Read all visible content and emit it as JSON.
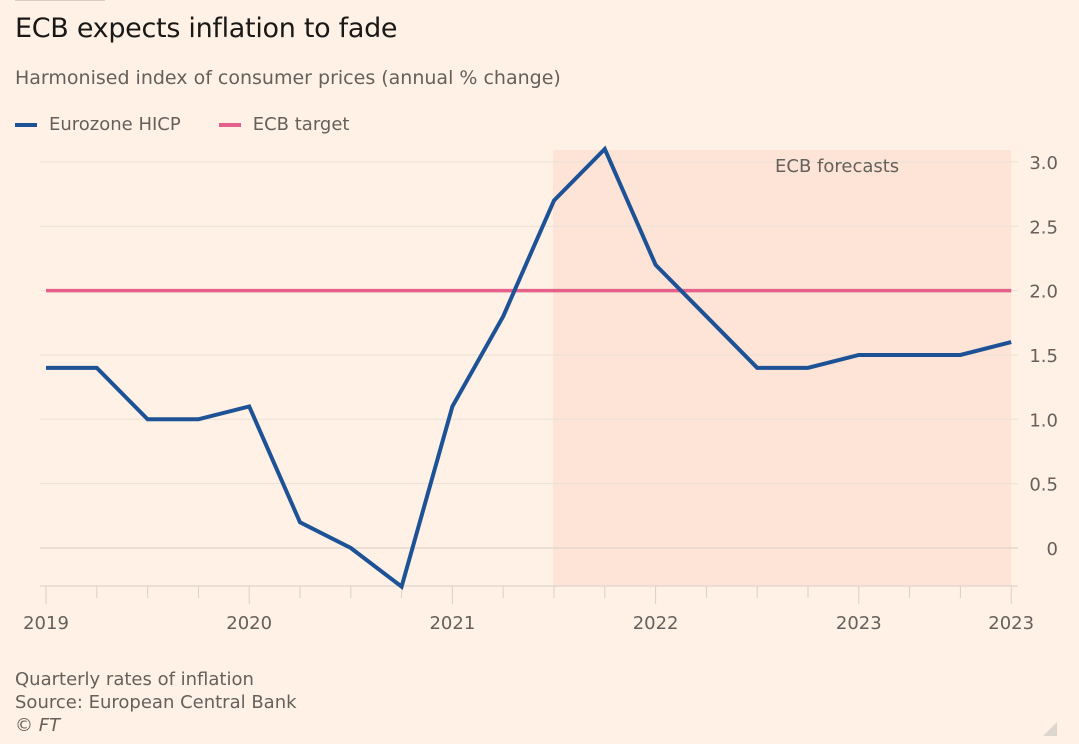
{
  "title": "ECB expects inflation to fade",
  "subtitle": "Harmonised index of consumer prices (annual % change)",
  "legend": [
    {
      "label": "Eurozone HICP",
      "color": "#1d5296"
    },
    {
      "label": "ECB target",
      "color": "#e5608a"
    }
  ],
  "notes": {
    "line1": "Quarterly rates of inflation",
    "line2": "Source: European Central Bank",
    "copyright": "© FT"
  },
  "chart_data": {
    "type": "line",
    "title": "ECB expects inflation to fade",
    "subtitle": "Harmonised index of consumer prices (annual % change)",
    "xlabel": "",
    "ylabel": "",
    "x": [
      "2019 Q1",
      "2019 Q2",
      "2019 Q3",
      "2019 Q4",
      "2020 Q1",
      "2020 Q2",
      "2020 Q3",
      "2020 Q4",
      "2021 Q1",
      "2021 Q2",
      "2021 Q3",
      "2021 Q4",
      "2022 Q1",
      "2022 Q2",
      "2022 Q3",
      "2022 Q4",
      "2023 Q1",
      "2023 Q2",
      "2023 Q3",
      "2023 Q4"
    ],
    "x_tick_labels": [
      {
        "index": 0,
        "label": "2019"
      },
      {
        "index": 4,
        "label": "2020"
      },
      {
        "index": 8,
        "label": "2021"
      },
      {
        "index": 12,
        "label": "2022"
      },
      {
        "index": 16,
        "label": "2023"
      },
      {
        "index": 19,
        "label": "2023"
      }
    ],
    "series": [
      {
        "name": "Eurozone HICP",
        "color": "#1d5296",
        "values": [
          1.4,
          1.4,
          1.0,
          1.0,
          1.1,
          0.2,
          0.0,
          -0.3,
          1.1,
          1.8,
          2.7,
          3.1,
          2.2,
          1.8,
          1.4,
          1.4,
          1.5,
          1.5,
          1.5,
          1.6
        ]
      },
      {
        "name": "ECB target",
        "color": "#e5608a",
        "values": [
          2.0,
          2.0,
          2.0,
          2.0,
          2.0,
          2.0,
          2.0,
          2.0,
          2.0,
          2.0,
          2.0,
          2.0,
          2.0,
          2.0,
          2.0,
          2.0,
          2.0,
          2.0,
          2.0,
          2.0
        ]
      }
    ],
    "y_ticks": [
      0,
      0.5,
      1.0,
      1.5,
      2.0,
      2.5,
      3.0
    ],
    "y_tick_labels": [
      "0",
      "0.5",
      "1.0",
      "1.5",
      "2.0",
      "2.5",
      "3.0"
    ],
    "ylim": [
      -0.3,
      3.1
    ],
    "y_axis_side": "right",
    "grid": true,
    "legend_position": "top-left",
    "annotations": [
      {
        "type": "shaded-region",
        "label": "ECB forecasts",
        "from_index": 10,
        "to_index": 19,
        "color": "#fde4d6"
      }
    ]
  }
}
